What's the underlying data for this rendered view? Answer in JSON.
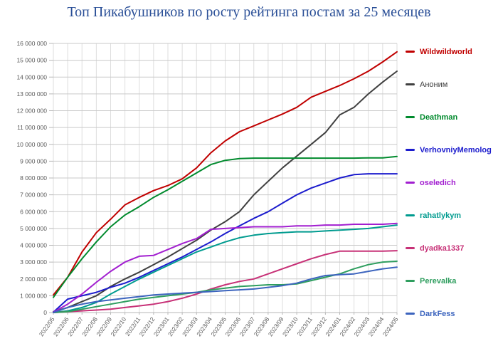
{
  "title": "Топ Пикабушников по росту рейтинга постам за 25 месяцев",
  "title_color": "#2a4f97",
  "axis": {
    "tick_color": "#595959",
    "h_grid_color": "#c9c9c9",
    "v_grid_color": "#dedede",
    "axis_line_color": "#b7b7b7"
  },
  "chart_data": {
    "type": "line",
    "title": "Топ Пикабушников по росту рейтинга постам за 25 месяцев",
    "xlabel": "",
    "ylabel": "",
    "ylim": [
      0,
      16000000
    ],
    "ytick_step": 1000000,
    "grid": true,
    "legend_position": "right",
    "x": [
      "2022/05",
      "2022/06",
      "2022/07",
      "2022/08",
      "2022/09",
      "2022/10",
      "2022/11",
      "2022/12",
      "2023/01",
      "2023/02",
      "2023/03",
      "2023/04",
      "2023/05",
      "2023/06",
      "2023/07",
      "2023/08",
      "2023/09",
      "2023/10",
      "2023/11",
      "2023/12",
      "2024/01",
      "2024/02",
      "2024/03",
      "2024/04",
      "2024/05"
    ],
    "series": [
      {
        "name": "Wildwildworld",
        "color": "#c00000",
        "legend_weight": "bold",
        "values": [
          1050000,
          2100000,
          3600000,
          4750000,
          5550000,
          6400000,
          6850000,
          7250000,
          7550000,
          7950000,
          8600000,
          9500000,
          10200000,
          10750000,
          11100000,
          11450000,
          11800000,
          12200000,
          12800000,
          13150000,
          13500000,
          13900000,
          14350000,
          14900000,
          15500000
        ]
      },
      {
        "name": "Аноним",
        "color": "#404040",
        "legend_weight": "normal",
        "values": [
          50000,
          300000,
          650000,
          1000000,
          1550000,
          2000000,
          2400000,
          2850000,
          3300000,
          3800000,
          4300000,
          4900000,
          5400000,
          6000000,
          7000000,
          7800000,
          8600000,
          9300000,
          10000000,
          10700000,
          11750000,
          12200000,
          13000000,
          13700000,
          14350000
        ]
      },
      {
        "name": "Deathman",
        "color": "#008a2d",
        "legend_weight": "bold",
        "values": [
          900000,
          2100000,
          3200000,
          4200000,
          5100000,
          5800000,
          6300000,
          6850000,
          7300000,
          7800000,
          8300000,
          8800000,
          9050000,
          9150000,
          9180000,
          9180000,
          9180000,
          9180000,
          9180000,
          9180000,
          9180000,
          9180000,
          9200000,
          9200000,
          9280000
        ]
      },
      {
        "name": "VerhovniyMemolog",
        "color": "#1c1ccd",
        "legend_weight": "bold",
        "values": [
          20000,
          800000,
          1000000,
          1200000,
          1500000,
          1750000,
          2100000,
          2500000,
          2900000,
          3300000,
          3750000,
          4200000,
          4700000,
          5150000,
          5600000,
          6000000,
          6500000,
          7000000,
          7400000,
          7700000,
          8000000,
          8200000,
          8250000,
          8250000,
          8250000
        ]
      },
      {
        "name": "oseledich",
        "color": "#a21fd0",
        "legend_weight": "bold",
        "values": [
          20000,
          500000,
          1100000,
          1800000,
          2450000,
          3000000,
          3350000,
          3400000,
          3750000,
          4100000,
          4400000,
          4950000,
          5000000,
          5050000,
          5100000,
          5100000,
          5100000,
          5150000,
          5150000,
          5200000,
          5200000,
          5250000,
          5250000,
          5250000,
          5300000
        ]
      },
      {
        "name": "rahatlykym",
        "color": "#009b8f",
        "legend_weight": "bold",
        "values": [
          0,
          100000,
          300000,
          600000,
          1100000,
          1550000,
          2000000,
          2400000,
          2800000,
          3200000,
          3600000,
          3900000,
          4200000,
          4450000,
          4600000,
          4700000,
          4750000,
          4800000,
          4800000,
          4850000,
          4900000,
          4950000,
          5000000,
          5100000,
          5200000
        ]
      },
      {
        "name": "dyadka1337",
        "color": "#c73177",
        "legend_weight": "bold",
        "values": [
          0,
          50000,
          100000,
          150000,
          200000,
          300000,
          400000,
          500000,
          650000,
          850000,
          1100000,
          1400000,
          1650000,
          1850000,
          2000000,
          2300000,
          2600000,
          2900000,
          3200000,
          3450000,
          3650000,
          3650000,
          3650000,
          3650000,
          3680000
        ]
      },
      {
        "name": "Perevalka",
        "color": "#2f9e5f",
        "legend_weight": "bold",
        "values": [
          0,
          50000,
          200000,
          350000,
          500000,
          650000,
          800000,
          900000,
          1000000,
          1100000,
          1200000,
          1350000,
          1450000,
          1550000,
          1600000,
          1650000,
          1650000,
          1700000,
          1900000,
          2100000,
          2300000,
          2600000,
          2850000,
          3000000,
          3050000
        ]
      },
      {
        "name": "DarkFess",
        "color": "#3c64be",
        "legend_weight": "bold",
        "values": [
          0,
          300000,
          500000,
          650000,
          750000,
          850000,
          950000,
          1050000,
          1100000,
          1150000,
          1200000,
          1250000,
          1300000,
          1350000,
          1400000,
          1500000,
          1600000,
          1750000,
          2000000,
          2200000,
          2250000,
          2300000,
          2450000,
          2600000,
          2700000
        ]
      }
    ]
  }
}
